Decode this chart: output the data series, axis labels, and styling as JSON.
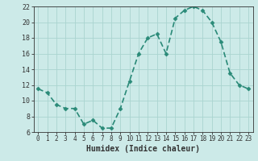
{
  "xlabel": "Humidex (Indice chaleur)",
  "ylabel": "",
  "x_values": [
    0,
    1,
    2,
    3,
    4,
    5,
    6,
    7,
    8,
    9,
    10,
    11,
    12,
    13,
    14,
    15,
    16,
    17,
    18,
    19,
    20,
    21,
    22,
    23
  ],
  "y_values": [
    11.5,
    11.0,
    9.5,
    9.0,
    9.0,
    7.0,
    7.5,
    6.5,
    6.5,
    9.0,
    12.5,
    16.0,
    18.0,
    18.5,
    16.0,
    20.5,
    21.5,
    22.0,
    21.5,
    20.0,
    17.5,
    13.5,
    12.0,
    11.5
  ],
  "ylim": [
    6,
    22
  ],
  "xlim": [
    -0.5,
    23.5
  ],
  "yticks": [
    6,
    8,
    10,
    12,
    14,
    16,
    18,
    20,
    22
  ],
  "xticks": [
    0,
    1,
    2,
    3,
    4,
    5,
    6,
    7,
    8,
    9,
    10,
    11,
    12,
    13,
    14,
    15,
    16,
    17,
    18,
    19,
    20,
    21,
    22,
    23
  ],
  "line_color": "#2a8a78",
  "marker_color": "#2a8a78",
  "bg_color": "#cceae8",
  "grid_color": "#aad4d0",
  "axis_color": "#333333",
  "markersize": 2.5,
  "linewidth": 1.2,
  "font_family": "monospace",
  "label_fontsize": 5.5,
  "xlabel_fontsize": 7
}
